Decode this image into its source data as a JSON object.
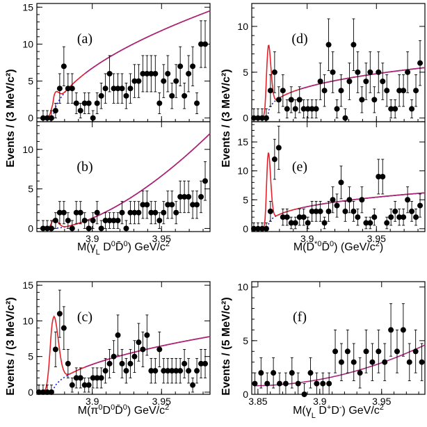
{
  "chart_data": [
    {
      "type": "scatter",
      "title": "(a)",
      "xlabel": "",
      "ylabel": "Events / (3 MeV/c²)",
      "xlim": [
        3.86,
        3.985
      ],
      "ylim": [
        -0.5,
        15.5
      ],
      "yticks": [
        0,
        5,
        10,
        15
      ],
      "xticks": [
        3.9,
        3.95
      ],
      "xtick_labels": [
        "",
        ""
      ],
      "x": [
        3.8645,
        3.8675,
        3.8705,
        3.8735,
        3.8765,
        3.8795,
        3.8825,
        3.8855,
        3.8885,
        3.8915,
        3.8945,
        3.8975,
        3.9005,
        3.9035,
        3.9065,
        3.9095,
        3.9125,
        3.9155,
        3.9185,
        3.9215,
        3.9245,
        3.9275,
        3.9305,
        3.9335,
        3.9365,
        3.9395,
        3.9425,
        3.9455,
        3.9485,
        3.9515,
        3.9545,
        3.9575,
        3.9605,
        3.9635,
        3.9665,
        3.9695,
        3.9725,
        3.9755,
        3.9785,
        3.9815
      ],
      "y": [
        0,
        0,
        0,
        1,
        4,
        7,
        4,
        4,
        2,
        1,
        2,
        2,
        0,
        2,
        3,
        4,
        6,
        4,
        4,
        4,
        3,
        4,
        5,
        5,
        6,
        6,
        6,
        6,
        2,
        5,
        6,
        3,
        5,
        7,
        3,
        6,
        7,
        2,
        10,
        10
      ],
      "peak": {
        "mu": 3.8725,
        "sigma": 0.0018,
        "amp": 2.2
      },
      "bkg": {
        "a": 14.5,
        "p": 0.55
      }
    },
    {
      "type": "scatter",
      "title": "(b)",
      "xlabel": "M(γ_L D⁰D̄⁰) GeV/c²",
      "ylabel": "Events / (3 MeV/c²)",
      "xlim": [
        3.86,
        3.985
      ],
      "ylim": [
        -0.4,
        13.5
      ],
      "yticks": [
        0,
        5,
        10
      ],
      "xticks": [
        3.9,
        3.95
      ],
      "xtick_labels": [
        "3.9",
        "3.95"
      ],
      "x": [
        3.8645,
        3.8675,
        3.8705,
        3.8735,
        3.8765,
        3.8795,
        3.8825,
        3.8855,
        3.8885,
        3.8915,
        3.8945,
        3.8975,
        3.9005,
        3.9035,
        3.9065,
        3.9095,
        3.9125,
        3.9155,
        3.9185,
        3.9215,
        3.9245,
        3.9275,
        3.9305,
        3.9335,
        3.9365,
        3.9395,
        3.9425,
        3.9455,
        3.9485,
        3.9515,
        3.9545,
        3.9575,
        3.9605,
        3.9635,
        3.9665,
        3.9695,
        3.9725,
        3.9755,
        3.9785,
        3.9815
      ],
      "y": [
        0,
        0,
        0,
        1,
        2,
        2,
        1,
        0,
        2,
        2,
        1,
        0,
        1,
        2,
        0,
        1,
        1,
        1,
        1,
        2,
        0,
        2,
        2,
        2,
        3,
        3,
        2,
        2,
        1,
        2,
        3,
        3,
        2,
        4,
        4,
        4,
        3,
        3,
        4,
        6
      ],
      "peak": {
        "mu": 3.8725,
        "sigma": 0.0018,
        "amp": 1.2
      },
      "bkg": {
        "a": 12,
        "p": 1.6
      }
    },
    {
      "type": "scatter",
      "title": "(c)",
      "xlabel": "M(π⁰D⁰D̄⁰) GeV/c²",
      "ylabel": "Events / (3 MeV/c²)",
      "xlim": [
        3.86,
        3.985
      ],
      "ylim": [
        -0.3,
        15.5
      ],
      "yticks": [
        0,
        5,
        10,
        15
      ],
      "xticks": [
        3.9,
        3.95
      ],
      "xtick_labels": [
        "3.9",
        "3.95"
      ],
      "x": [
        3.8615,
        3.8645,
        3.8675,
        3.8705,
        3.8735,
        3.8765,
        3.8795,
        3.8825,
        3.8855,
        3.8885,
        3.8915,
        3.8945,
        3.8975,
        3.9005,
        3.9035,
        3.9065,
        3.9095,
        3.9125,
        3.9155,
        3.9185,
        3.9215,
        3.9245,
        3.9275,
        3.9305,
        3.9335,
        3.9365,
        3.9395,
        3.9425,
        3.9455,
        3.9485,
        3.9515,
        3.9545,
        3.9575,
        3.9605,
        3.9635,
        3.9665,
        3.9695,
        3.9725,
        3.9755,
        3.9785,
        3.9815
      ],
      "y": [
        0,
        0,
        0,
        0,
        6,
        11,
        9,
        4,
        1,
        2,
        2,
        1,
        1,
        2,
        2,
        2,
        3,
        4,
        5,
        8,
        4,
        3,
        4,
        5,
        7,
        6,
        8,
        3,
        3,
        6,
        3,
        3,
        3,
        3,
        3,
        4,
        3,
        1,
        3,
        4,
        4
      ],
      "peak": {
        "mu": 3.8718,
        "sigma": 0.0022,
        "amp": 10.2
      },
      "bkg": {
        "a": 7.8,
        "p": 0.5
      }
    },
    {
      "type": "scatter",
      "title": "(d)",
      "xlabel": "",
      "ylabel": "Events / (3 MeV/c²)",
      "xlim": [
        3.86,
        3.985
      ],
      "ylim": [
        -0.4,
        12.5
      ],
      "yticks": [
        0,
        5,
        10
      ],
      "xticks": [
        3.9,
        3.95
      ],
      "xtick_labels": [
        "",
        ""
      ],
      "x": [
        3.8615,
        3.8645,
        3.8675,
        3.8705,
        3.8735,
        3.8765,
        3.8795,
        3.8825,
        3.8855,
        3.8885,
        3.8915,
        3.8945,
        3.8975,
        3.9005,
        3.9035,
        3.9065,
        3.9095,
        3.9125,
        3.9155,
        3.9185,
        3.9215,
        3.9245,
        3.9275,
        3.9305,
        3.9335,
        3.9365,
        3.9395,
        3.9425,
        3.9455,
        3.9485,
        3.9515,
        3.9545,
        3.9575,
        3.9605,
        3.9635,
        3.9665,
        3.9695,
        3.9725,
        3.9755,
        3.9785,
        3.9815
      ],
      "y": [
        0,
        0,
        0,
        0,
        3,
        5,
        2,
        3,
        1,
        2,
        1,
        2,
        1,
        1,
        1,
        1,
        4,
        3,
        8,
        5,
        1,
        3,
        0,
        4,
        8,
        5,
        2,
        4,
        5,
        2,
        5,
        4,
        3,
        1,
        1,
        3,
        3,
        5,
        1,
        3,
        6
      ],
      "peak": {
        "mu": 3.8718,
        "sigma": 0.0012,
        "amp": 7.4
      },
      "bkg": {
        "a": 5.5,
        "p": 0.35
      }
    },
    {
      "type": "scatter",
      "title": "(e)",
      "xlabel": "M(D*⁰D̄⁰) (GeV/c²)",
      "ylabel": "Events / (3 MeV/c²)",
      "xlim": [
        3.86,
        3.985
      ],
      "ylim": [
        -0.5,
        18.5
      ],
      "yticks": [
        0,
        5,
        10,
        15
      ],
      "xticks": [
        3.9,
        3.95
      ],
      "xtick_labels": [
        "3.9",
        "3.95"
      ],
      "x": [
        3.8615,
        3.8645,
        3.8675,
        3.8705,
        3.8735,
        3.8765,
        3.8795,
        3.8825,
        3.8855,
        3.8885,
        3.8915,
        3.8945,
        3.8975,
        3.9005,
        3.9035,
        3.9065,
        3.9095,
        3.9125,
        3.9155,
        3.9185,
        3.9215,
        3.9245,
        3.9275,
        3.9305,
        3.9335,
        3.9365,
        3.9395,
        3.9425,
        3.9455,
        3.9485,
        3.9515,
        3.9545,
        3.9575,
        3.9605,
        3.9635,
        3.9665,
        3.9695,
        3.9725,
        3.9755,
        3.9785,
        3.9815
      ],
      "y": [
        0,
        0,
        0,
        0,
        3,
        12,
        14,
        2,
        2,
        1,
        1,
        2,
        2,
        1,
        3,
        3,
        3,
        1,
        3,
        5,
        4,
        8,
        3,
        5,
        3,
        2,
        5,
        1,
        1,
        2,
        9,
        9,
        1,
        2,
        3,
        2,
        2,
        5,
        3,
        2,
        4
      ],
      "peak": {
        "mu": 3.8718,
        "sigma": 0.0011,
        "amp": 12.6
      },
      "bkg": {
        "a": 6.2,
        "p": 0.35
      }
    },
    {
      "type": "scatter",
      "title": "(f)",
      "xlabel": "M(γ_L D⁺D⁻) GeV/c²",
      "ylabel": "Events / (5 MeV/c²)",
      "xlim": [
        3.845,
        3.985
      ],
      "ylim": [
        0,
        10.5
      ],
      "yticks": [
        0,
        5,
        10
      ],
      "xticks": [
        3.85,
        3.9,
        3.95
      ],
      "xtick_labels": [
        "3.85",
        "3.9",
        "3.95"
      ],
      "x": [
        3.8475,
        3.8525,
        3.8575,
        3.8625,
        3.8675,
        3.8725,
        3.8775,
        3.8825,
        3.8875,
        3.8925,
        3.8975,
        3.9025,
        3.9075,
        3.9125,
        3.9175,
        3.9225,
        3.9275,
        3.9325,
        3.9375,
        3.9425,
        3.9475,
        3.9525,
        3.9575,
        3.9625,
        3.9675,
        3.9725,
        3.9775,
        3.9825
      ],
      "y": [
        1,
        2,
        1,
        2,
        1,
        1,
        2,
        1,
        0,
        2,
        1,
        1,
        1,
        4,
        3,
        4,
        3,
        2,
        4,
        3,
        4,
        3,
        6,
        4,
        6,
        3,
        4,
        3
      ],
      "peak": null,
      "bkg": {
        "a": 0.8,
        "c": 3.8,
        "p": 2.0
      }
    }
  ],
  "ylabels": {
    "top_left": "Events / (3 MeV/c²)",
    "top_right": "Events / (3 MeV/c²)",
    "bottom_left": "Events / (3 MeV/c²)",
    "bottom_right": "Events / (5 MeV/c²)"
  },
  "colors": {
    "signal_fit": "#e8202a",
    "background": "#1a1ad6",
    "combined": "#a8247a",
    "points": "#000000"
  }
}
